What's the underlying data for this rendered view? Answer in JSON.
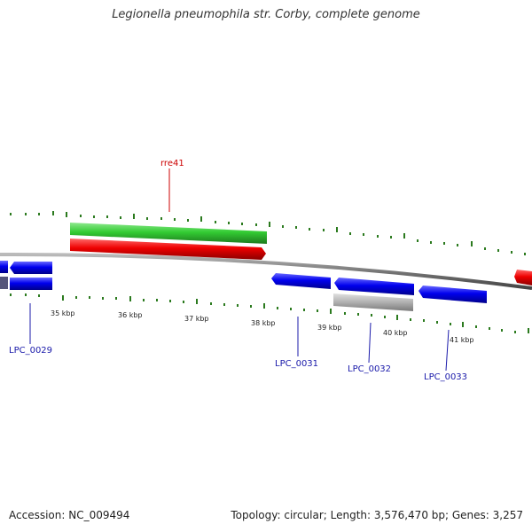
{
  "title": "Legionella pneumophila str. Corby, complete genome",
  "footer": {
    "accession": "Accession: NC_009494",
    "stats": "Topology: circular; Length: 3,576,470 bp; Genes: 3,257"
  },
  "scale_labels": [
    "35 kbp",
    "36 kbp",
    "37 kbp",
    "38 kbp",
    "39 kbp",
    "40 kbp",
    "41 kbp"
  ],
  "gene_labels": [
    {
      "name": "rre41",
      "color": "#cc0000"
    },
    {
      "name": "LPC_0029",
      "color": "#1a1aaa"
    },
    {
      "name": "LPC_0031",
      "color": "#1a1aaa"
    },
    {
      "name": "LPC_0032",
      "color": "#1a1aaa"
    },
    {
      "name": "LPC_0033",
      "color": "#1a1aaa"
    }
  ],
  "colors": {
    "cds": "#0000ee",
    "rrna": "#ee0000",
    "gene": "#33cc33",
    "pseudo": "#aaaaaa",
    "tick": "#2b7a1e",
    "backbone": "#777777"
  }
}
